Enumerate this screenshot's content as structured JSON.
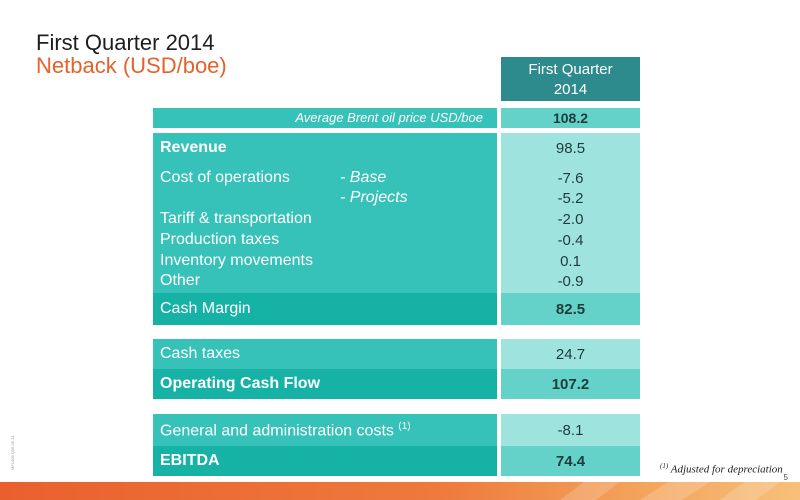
{
  "header": {
    "title": "First Quarter 2014",
    "subtitle": "Netback (USD/boe)"
  },
  "table": {
    "column_header_line1": "First Quarter",
    "column_header_line2": "2014",
    "brent": {
      "label": "Average Brent oil price USD/boe",
      "value": "108.2"
    },
    "revenue": {
      "label": "Revenue",
      "value": "98.5"
    },
    "cost_ops": {
      "label": "Cost of operations",
      "base_label": "- Base",
      "base_value": "-7.6",
      "projects_label": "- Projects",
      "projects_value": "-5.2"
    },
    "tariff": {
      "label": "Tariff & transportation",
      "value": "-2.0"
    },
    "production_taxes": {
      "label": "Production taxes",
      "value": "-0.4"
    },
    "inventory": {
      "label": "Inventory movements",
      "value": "0.1"
    },
    "other": {
      "label": "Other",
      "value": "-0.9"
    },
    "cash_margin": {
      "label": "Cash Margin",
      "value": "82.5"
    },
    "cash_taxes": {
      "label": "Cash taxes",
      "value": "24.7"
    },
    "operating_cash_flow": {
      "label": "Operating Cash Flow",
      "value": "107.2"
    },
    "gna": {
      "label": "General and administration costs",
      "footnote_mark": "(1)",
      "value": "-8.1"
    },
    "ebitda": {
      "label": "EBITDA",
      "value": "74.4"
    }
  },
  "footnote": {
    "mark": "(1)",
    "text": "Adjusted for depreciation"
  },
  "side_note": "MF1406 Q05 05.14",
  "page_number": "5",
  "colors": {
    "title": "#1e1e1e",
    "subtitle": "#e6622a",
    "header_teal": "#2d8a8d",
    "teal": "#37c2b9",
    "teal_dark": "#16b2a6",
    "value_light": "#9fe3de",
    "value_medium": "#65d2c9",
    "bottom_bar": "#e9602e"
  }
}
